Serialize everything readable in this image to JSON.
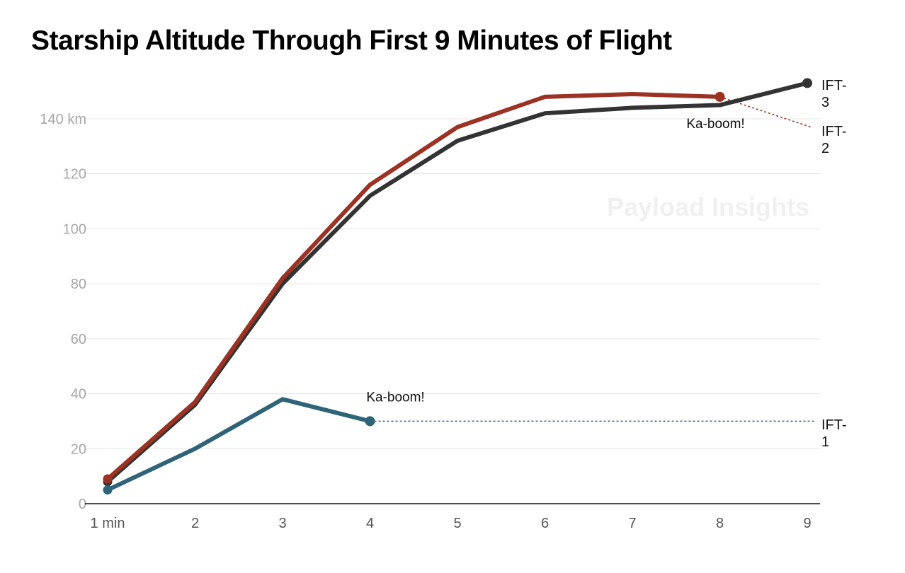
{
  "title": "Starship Altitude Through First 9 Minutes of Flight",
  "watermark": "Payload Insights",
  "colors": {
    "IFT-1": "#2e6378",
    "IFT-2": "#9b3223",
    "IFT-3": "#333333",
    "grid": "#e4e4e4",
    "axis": "#111111"
  },
  "chart_data": {
    "type": "line",
    "title": "Starship Altitude Through First 9 Minutes of Flight",
    "xlabel": "",
    "ylabel": "",
    "x": [
      1,
      2,
      3,
      4,
      5,
      6,
      7,
      8,
      9
    ],
    "x_tick_labels": [
      "1 min",
      "2",
      "3",
      "4",
      "5",
      "6",
      "7",
      "8",
      "9"
    ],
    "y_ticks": [
      0,
      20,
      40,
      60,
      80,
      100,
      120,
      140
    ],
    "y_tick_labels": [
      "0",
      "20",
      "40",
      "60",
      "80",
      "100",
      "120",
      "140 km"
    ],
    "ylim": [
      0,
      140
    ],
    "grid": true,
    "legend": "none (series labeled at right end of lines)",
    "series": [
      {
        "name": "IFT-1",
        "label_lines": [
          "IFT-",
          "1"
        ],
        "x": [
          1,
          2,
          3,
          4
        ],
        "values": [
          5,
          20,
          38,
          30
        ],
        "end_marker": true,
        "projection": {
          "from_x": 4,
          "to_x": 9,
          "value": 30,
          "style": "dotted"
        },
        "annotation": "Ka-boom!"
      },
      {
        "name": "IFT-2",
        "label_lines": [
          "IFT-",
          "2"
        ],
        "x": [
          1,
          2,
          3,
          4,
          5,
          6,
          7,
          8
        ],
        "values": [
          9,
          37,
          82,
          116,
          137,
          148,
          149,
          148
        ],
        "end_marker": true,
        "projection": {
          "from_x": 8,
          "to_x": 9,
          "from_value": 148,
          "value": 137,
          "style": "dotted"
        },
        "annotation": "Ka-boom!"
      },
      {
        "name": "IFT-3",
        "label_lines": [
          "IFT-",
          "3"
        ],
        "x": [
          1,
          2,
          3,
          4,
          5,
          6,
          7,
          8,
          9
        ],
        "values": [
          8,
          36,
          80,
          112,
          132,
          142,
          144,
          145,
          153
        ],
        "end_marker": true
      }
    ]
  }
}
